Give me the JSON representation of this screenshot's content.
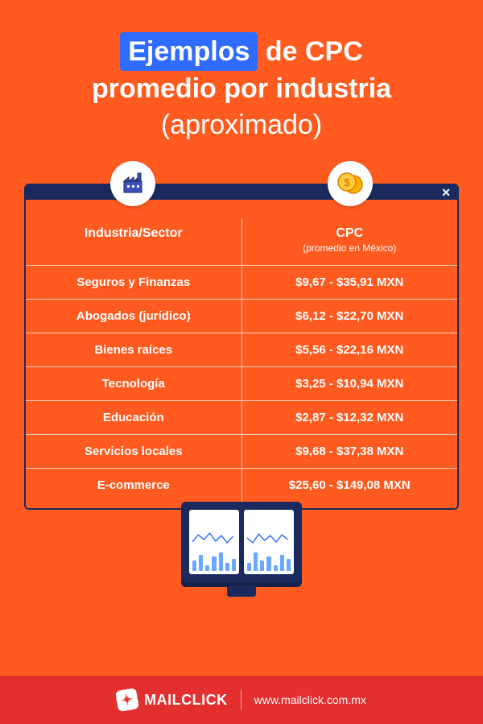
{
  "colors": {
    "background": "#ff5a1f",
    "highlight": "#2f6bff",
    "panel_border": "#1a2a5e",
    "footer_bg": "#e32f2f",
    "text": "#ffffff",
    "divider": "rgba(255,255,255,.7)",
    "coin_fill": "#ffb000",
    "coin_stroke": "#e07c00",
    "factory_fill": "#3a4fb8",
    "factory_stroke": "#1a2a5e",
    "spark_stroke": "#2f6bff",
    "bar_fill": "#6aa8ff"
  },
  "title": {
    "highlight": "Ejemplos",
    "rest_line1": " de CPC",
    "line2": "promedio por industria",
    "subtitle": "(aproximado)"
  },
  "table": {
    "header_left": "Industria/Sector",
    "header_right": "CPC",
    "header_right_sub": "(promedio en México)",
    "rows": [
      {
        "industry": "Seguros y Finanzas",
        "cpc": "$9,67 - $35,91 MXN"
      },
      {
        "industry": "Abogados (jurídico)",
        "cpc": "$6,12 - $22,70 MXN"
      },
      {
        "industry": "Bienes raíces",
        "cpc": "$5,56 - $22,16 MXN"
      },
      {
        "industry": "Tecnología",
        "cpc": "$3,25 - $10,94 MXN"
      },
      {
        "industry": "Educación",
        "cpc": "$2,87 - $12,32 MXN"
      },
      {
        "industry": "Servicios locales",
        "cpc": "$9,68 - $37,38 MXN"
      },
      {
        "industry": "E-commerce",
        "cpc": "$25,60 - $149,08 MXN"
      }
    ]
  },
  "illustration": {
    "bars_panel1": [
      0.5,
      0.8,
      0.3,
      0.7,
      0.9,
      0.4,
      0.6
    ],
    "bars_panel2": [
      0.4,
      0.9,
      0.5,
      0.7,
      0.3,
      0.8,
      0.6
    ]
  },
  "footer": {
    "brand": "MAILCLICK",
    "url": "www.mailclick.com.mx"
  }
}
